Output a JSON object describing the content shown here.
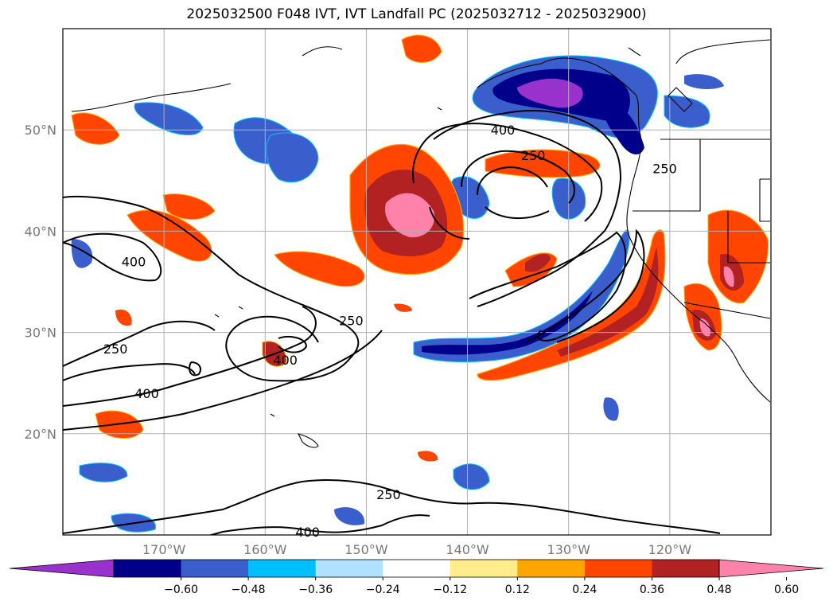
{
  "title": "2025032500 F048 IVT, IVT Landfall PC (2025032712 - 2025032900)",
  "map": {
    "lon_range": [
      -180,
      -110
    ],
    "lat_range": [
      10,
      60
    ],
    "lat_ticks": [
      {
        "lat": 50,
        "label": "50°N"
      },
      {
        "lat": 40,
        "label": "40°N"
      },
      {
        "lat": 30,
        "label": "30°N"
      },
      {
        "lat": 20,
        "label": "20°N"
      }
    ],
    "lon_ticks": [
      {
        "lon": -170,
        "label": "170°W"
      },
      {
        "lon": -160,
        "label": "160°W"
      },
      {
        "lon": -150,
        "label": "150°W"
      },
      {
        "lon": -140,
        "label": "140°W"
      },
      {
        "lon": -130,
        "label": "130°W"
      },
      {
        "lon": -120,
        "label": "120°W"
      }
    ],
    "grid": true,
    "contour_labels": [
      {
        "text": "400",
        "lon": -136.5,
        "lat": 50.0
      },
      {
        "text": "250",
        "lon": -133.5,
        "lat": 47.5
      },
      {
        "text": "250",
        "lon": -120.5,
        "lat": 46.2
      },
      {
        "text": "400",
        "lon": -173.0,
        "lat": 37.0
      },
      {
        "text": "250",
        "lon": -151.5,
        "lat": 31.2
      },
      {
        "text": "250",
        "lon": -174.8,
        "lat": 28.4
      },
      {
        "text": "400",
        "lon": -158.0,
        "lat": 27.3
      },
      {
        "text": "400",
        "lon": -171.7,
        "lat": 24.0
      },
      {
        "text": "250",
        "lon": -147.8,
        "lat": 14.0
      },
      {
        "text": "400",
        "lon": -155.8,
        "lat": 10.3
      }
    ]
  },
  "colorbar": {
    "colors": [
      "#9932cc",
      "#00008b",
      "#3a5fcd",
      "#00bfff",
      "#b0e2ff",
      "#ffffff",
      "#ffec8b",
      "#ffa500",
      "#ff4500",
      "#b22222",
      "#ff82ab"
    ],
    "tick_labels": [
      "−0.60",
      "−0.48",
      "−0.36",
      "−0.24",
      "−0.12",
      "0.12",
      "0.24",
      "0.36",
      "0.48",
      "0.60"
    ]
  }
}
